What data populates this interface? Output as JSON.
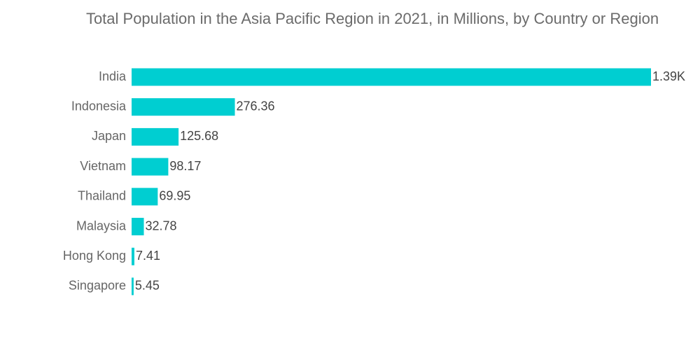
{
  "chart_data": {
    "type": "bar",
    "orientation": "horizontal",
    "title": "Total Population in the Asia Pacific Region in 2021, in Millions, by Country or Region",
    "xlabel": "",
    "ylabel": "",
    "categories": [
      "India",
      "Indonesia",
      "Japan",
      "Vietnam",
      "Thailand",
      "Malaysia",
      "Hong Kong",
      "Singapore"
    ],
    "values": [
      1390,
      276.36,
      125.68,
      98.17,
      69.95,
      32.78,
      7.41,
      5.45
    ],
    "data_labels": [
      "1.39K",
      "276.36",
      "125.68",
      "98.17",
      "69.95",
      "32.78",
      "7.41",
      "5.45"
    ],
    "xlim": [
      0,
      1390
    ],
    "grid": false,
    "legend": "none",
    "colors": {
      "bar": "#00CED1",
      "title": "#6b6b6b",
      "category_label": "#666666",
      "value_label": "#444444"
    }
  }
}
